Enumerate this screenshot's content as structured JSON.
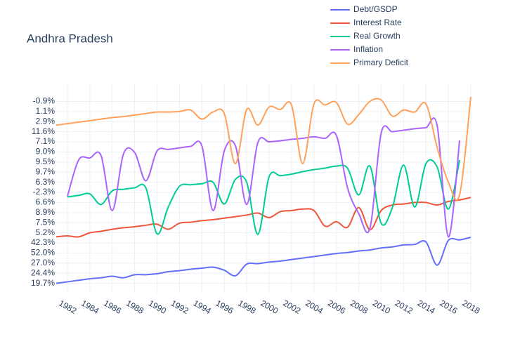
{
  "chart_data": {
    "type": "line",
    "title": "Andhra Pradesh",
    "x": [
      1981,
      1982,
      1983,
      1984,
      1985,
      1986,
      1987,
      1988,
      1989,
      1990,
      1991,
      1992,
      1993,
      1994,
      1995,
      1996,
      1997,
      1998,
      1999,
      2000,
      2001,
      2002,
      2003,
      2004,
      2005,
      2006,
      2007,
      2008,
      2009,
      2010,
      2011,
      2012,
      2013,
      2014,
      2015,
      2016,
      2017,
      2018
    ],
    "xlim": [
      1981,
      2018
    ],
    "xticks": [
      1982,
      1984,
      1986,
      1988,
      1990,
      1992,
      1994,
      1996,
      1998,
      2000,
      2002,
      2004,
      2006,
      2008,
      2010,
      2012,
      2014,
      2016,
      2018
    ],
    "ylim": [
      -1,
      19.7
    ],
    "yticks": [
      {
        "value": 0,
        "label": "19.7%"
      },
      {
        "value": 1,
        "label": "24.4%"
      },
      {
        "value": 2,
        "label": "27.0%"
      },
      {
        "value": 3,
        "label": "52.0%"
      },
      {
        "value": 4,
        "label": "42.3%"
      },
      {
        "value": 5,
        "label": "5.2%"
      },
      {
        "value": 6,
        "label": "7.5%"
      },
      {
        "value": 7,
        "label": "8.9%"
      },
      {
        "value": 8,
        "label": "6.6%"
      },
      {
        "value": 9,
        "label": "-2.3%"
      },
      {
        "value": 10,
        "label": "6.3%"
      },
      {
        "value": 11,
        "label": "9.7%"
      },
      {
        "value": 12,
        "label": "9.5%"
      },
      {
        "value": 13,
        "label": "9.0%"
      },
      {
        "value": 14,
        "label": "7.1%"
      },
      {
        "value": 15,
        "label": "11.6%"
      },
      {
        "value": 16,
        "label": "2.9%"
      },
      {
        "value": 17,
        "label": "1.1%"
      },
      {
        "value": 18,
        "label": "-0.9%"
      }
    ],
    "grid": true,
    "series": [
      {
        "name": "Debt/GSDP",
        "color": "#636efa",
        "values": [
          0,
          0.15,
          0.3,
          0.45,
          0.55,
          0.7,
          0.55,
          0.85,
          0.85,
          0.95,
          1.15,
          1.25,
          1.4,
          1.5,
          1.6,
          1.3,
          0.75,
          1.9,
          1.95,
          2.1,
          2.2,
          2.35,
          2.5,
          2.65,
          2.8,
          2.95,
          3.05,
          3.2,
          3.3,
          3.5,
          3.6,
          3.8,
          3.85,
          4.1,
          1.8,
          4.25,
          4.3,
          4.55
        ]
      },
      {
        "name": "Interest Rate",
        "color": "#ef553b",
        "values": [
          4.6,
          4.7,
          4.6,
          5.0,
          5.15,
          5.35,
          5.5,
          5.6,
          5.75,
          5.85,
          5.35,
          5.95,
          6.05,
          6.2,
          6.3,
          6.45,
          6.6,
          6.75,
          6.95,
          6.5,
          7.1,
          7.2,
          7.35,
          7.2,
          5.65,
          6.1,
          5.55,
          7.5,
          5.3,
          7.2,
          7.75,
          7.85,
          8.0,
          8.0,
          7.75,
          8.1,
          8.25,
          8.5
        ]
      },
      {
        "name": "Real Growth",
        "color": "#00cc96",
        "values": [
          null,
          8.55,
          8.7,
          8.85,
          7.8,
          9.15,
          9.3,
          9.45,
          9.45,
          4.9,
          7.55,
          9.6,
          9.75,
          9.85,
          10.0,
          7.85,
          10.3,
          10.0,
          4.85,
          10.55,
          10.65,
          10.8,
          11.05,
          11.25,
          11.4,
          11.6,
          11.4,
          8.75,
          11.6,
          5.95,
          7.5,
          11.7,
          7.55,
          11.85,
          11.5,
          7.35,
          12.2,
          null
        ]
      },
      {
        "name": "Inflation",
        "color": "#ab63fa",
        "values": [
          null,
          8.6,
          12.2,
          12.4,
          12.65,
          7.2,
          12.8,
          12.95,
          10.15,
          13.1,
          13.25,
          13.4,
          13.55,
          13.6,
          7.2,
          13.1,
          13.6,
          7.8,
          13.95,
          14.0,
          14.1,
          14.25,
          14.35,
          14.5,
          14.35,
          14.65,
          9.45,
          6.9,
          5.45,
          14.85,
          15.0,
          15.15,
          15.3,
          15.4,
          15.6,
          4.6,
          14.15,
          null
        ]
      },
      {
        "name": "Primary Deficit",
        "color": "#ffa15a",
        "values": [
          15.65,
          15.8,
          15.95,
          16.1,
          16.25,
          16.4,
          16.5,
          16.65,
          16.8,
          16.95,
          16.95,
          17.0,
          17.15,
          16.25,
          16.95,
          16.8,
          11.85,
          17.2,
          15.65,
          17.45,
          17.2,
          17.65,
          11.85,
          17.75,
          17.65,
          17.9,
          15.75,
          16.7,
          18.0,
          18.15,
          16.55,
          17.15,
          16.95,
          17.75,
          13.45,
          10.0,
          8.75,
          18.45
        ]
      }
    ]
  }
}
